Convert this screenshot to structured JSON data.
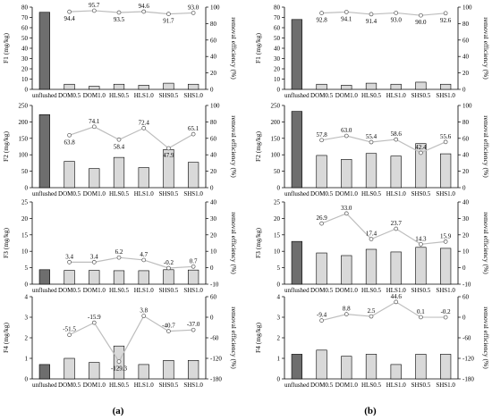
{
  "figure": {
    "panel_labels": [
      "(a)",
      "(b)"
    ]
  },
  "colors": {
    "unflushed_bar": "#6e6e6e",
    "treatment_bar": "#d9d9d9",
    "bar_outline": "#000000",
    "efficiency_line": "#bdbdbd",
    "efficiency_marker_fill": "#ffffff"
  },
  "chart_data": [
    {
      "type": "bar",
      "panel": "(a)",
      "categories": [
        "unflushed",
        "DOM0.5",
        "DOM1.0",
        "HLS0.5",
        "HLS1.0",
        "SHS0.5",
        "SHS1.0"
      ],
      "series": [
        {
          "name": "",
          "values": [
            75,
            5,
            3,
            5,
            4,
            6,
            5
          ]
        }
      ],
      "ylabel": "F1 (mg/kg)",
      "ylim": [
        0,
        80
      ],
      "yticks": [
        0,
        10,
        20,
        30,
        40,
        50,
        60,
        70,
        80
      ],
      "y2label": "removal efficiency (%)",
      "y2lim": [
        0,
        100
      ],
      "y2ticks": [
        0,
        20,
        40,
        60,
        80,
        100
      ],
      "efficiency": [
        94.4,
        95.7,
        93.5,
        94.6,
        91.7,
        93.0
      ],
      "efficiency_labels": [
        "94.4",
        "95.7",
        "93.5",
        "94.6",
        "91.7",
        "93.0"
      ],
      "label_pos": [
        "below",
        "above",
        "below",
        "above",
        "below",
        "above"
      ]
    },
    {
      "type": "bar",
      "panel": "(a)",
      "categories": [
        "unflushed",
        "DOM0.5",
        "DOM1.0",
        "HLS0.5",
        "HLS1.0",
        "SHS0.5",
        "SHS1.0"
      ],
      "series": [
        {
          "name": "",
          "values": [
            222,
            80,
            58,
            92,
            61,
            116,
            77
          ]
        }
      ],
      "ylabel": "F2 (mg/kg)",
      "ylim": [
        0,
        250
      ],
      "yticks": [
        0,
        50,
        100,
        150,
        200,
        250
      ],
      "y2label": "removal efficiency (%)",
      "y2lim": [
        0,
        100
      ],
      "y2ticks": [
        0,
        20,
        40,
        60,
        80,
        100
      ],
      "efficiency": [
        63.8,
        74.1,
        58.4,
        72.4,
        47.9,
        65.1
      ],
      "efficiency_labels": [
        "63.8",
        "74.1",
        "58.4",
        "72.4",
        "47.9",
        "65.1"
      ],
      "label_pos": [
        "below",
        "above",
        "below",
        "above",
        "below",
        "above"
      ]
    },
    {
      "type": "bar",
      "panel": "(a)",
      "categories": [
        "unflushed",
        "DOM0.5",
        "DOM1.0",
        "HLS0.5",
        "HLS1.0",
        "SHS0.5",
        "SHS1.0"
      ],
      "series": [
        {
          "name": "",
          "values": [
            4.4,
            4.2,
            4.2,
            4.1,
            4.1,
            4.4,
            4.3
          ]
        }
      ],
      "ylabel": "F3 (mg/kg)",
      "ylim": [
        0,
        25
      ],
      "yticks": [
        0,
        5,
        10,
        15,
        20,
        25
      ],
      "y2label": "removal efficiency (%)",
      "y2lim": [
        -10,
        40
      ],
      "y2ticks": [
        -10,
        0,
        10,
        20,
        30,
        40
      ],
      "efficiency": [
        3.4,
        3.4,
        6.2,
        4.7,
        -0.2,
        0.7
      ],
      "efficiency_labels": [
        "3.4",
        "3.4",
        "6.2",
        "4.7",
        "-0.2",
        "0.7"
      ],
      "label_pos": [
        "above",
        "above",
        "above",
        "above",
        "above",
        "above"
      ]
    },
    {
      "type": "bar",
      "panel": "(a)",
      "categories": [
        "unflushed",
        "DOM0.5",
        "DOM1.0",
        "HLS0.5",
        "HLS1.0",
        "SHS0.5",
        "SHS1.0"
      ],
      "series": [
        {
          "name": "",
          "values": [
            0.7,
            1.0,
            0.8,
            1.6,
            0.7,
            0.9,
            0.9
          ]
        }
      ],
      "ylabel": "F4 (mg/kg)",
      "ylim": [
        0,
        4
      ],
      "yticks": [
        0,
        1,
        2,
        3,
        4
      ],
      "y2label": "removal efficiency (%)",
      "y2lim": [
        -180,
        60
      ],
      "y2ticks": [
        -180,
        -120,
        -60,
        0,
        60
      ],
      "efficiency": [
        -51.5,
        -15.9,
        -129.3,
        3.8,
        -40.7,
        -37.0
      ],
      "efficiency_labels": [
        "-51.5",
        "-15.9",
        "-129.3",
        "3.8",
        "-40.7",
        "-37.0"
      ],
      "label_pos": [
        "above",
        "above",
        "below",
        "above",
        "above",
        "above"
      ]
    },
    {
      "type": "bar",
      "panel": "(b)",
      "categories": [
        "unflushed",
        "DOM0.5",
        "DOM1.0",
        "HLS0.5",
        "HLS1.0",
        "SHS0.5",
        "SHS1.0"
      ],
      "series": [
        {
          "name": "",
          "values": [
            68,
            5,
            4,
            6,
            5,
            7,
            5
          ]
        }
      ],
      "ylabel": "F1 (mg/kg)",
      "ylim": [
        0,
        80
      ],
      "yticks": [
        0,
        10,
        20,
        30,
        40,
        50,
        60,
        70,
        80
      ],
      "y2label": "removal efficiency (%)",
      "y2lim": [
        0,
        100
      ],
      "y2ticks": [
        0,
        20,
        40,
        60,
        80,
        100
      ],
      "efficiency": [
        92.8,
        94.1,
        91.4,
        93.0,
        90.0,
        92.6
      ],
      "efficiency_labels": [
        "92.8",
        "94.1",
        "91.4",
        "93.0",
        "90.0",
        "92.6"
      ],
      "label_pos": [
        "below",
        "below",
        "below",
        "below",
        "below",
        "below"
      ]
    },
    {
      "type": "bar",
      "panel": "(b)",
      "categories": [
        "unflushed",
        "DOM0.5",
        "DOM1.0",
        "HLS0.5",
        "HLS1.0",
        "SHS0.5",
        "SHS1.0"
      ],
      "series": [
        {
          "name": "",
          "values": [
            232,
            98,
            86,
            104,
            96,
            134,
            103
          ]
        }
      ],
      "ylabel": "F2 (mg/kg)",
      "ylim": [
        0,
        250
      ],
      "yticks": [
        0,
        50,
        100,
        150,
        200,
        250
      ],
      "y2label": "removal efficiency (%)",
      "y2lim": [
        0,
        100
      ],
      "y2ticks": [
        0,
        20,
        40,
        60,
        80,
        100
      ],
      "efficiency": [
        57.8,
        63.0,
        55.4,
        58.6,
        42.4,
        55.6
      ],
      "efficiency_labels": [
        "57.8",
        "63.0",
        "55.4",
        "58.6",
        "42.4",
        "55.6"
      ],
      "label_pos": [
        "above",
        "above",
        "above",
        "above",
        "above",
        "above"
      ]
    },
    {
      "type": "bar",
      "panel": "(b)",
      "categories": [
        "unflushed",
        "DOM0.5",
        "DOM1.0",
        "HLS0.5",
        "HLS1.0",
        "SHS0.5",
        "SHS1.0"
      ],
      "series": [
        {
          "name": "",
          "values": [
            13,
            9.5,
            8.7,
            10.6,
            9.8,
            11.2,
            10.9
          ]
        }
      ],
      "ylabel": "F3 (mg/kg)",
      "ylim": [
        0,
        25
      ],
      "yticks": [
        0,
        5,
        10,
        15,
        20,
        25
      ],
      "y2label": "removal efficiency (%)",
      "y2lim": [
        -10,
        40
      ],
      "y2ticks": [
        -10,
        0,
        10,
        20,
        30,
        40
      ],
      "efficiency": [
        26.9,
        33.0,
        17.4,
        23.7,
        14.3,
        15.9
      ],
      "efficiency_labels": [
        "26.9",
        "33.0",
        "17.4",
        "23.7",
        "14.3",
        "15.9"
      ],
      "label_pos": [
        "above",
        "above",
        "above",
        "above",
        "above",
        "above"
      ]
    },
    {
      "type": "bar",
      "panel": "(b)",
      "categories": [
        "unflushed",
        "DOM0.5",
        "DOM1.0",
        "HLS0.5",
        "HLS1.0",
        "SHS0.5",
        "SHS1.0"
      ],
      "series": [
        {
          "name": "",
          "values": [
            1.2,
            1.4,
            1.1,
            1.2,
            0.7,
            1.2,
            1.2
          ]
        }
      ],
      "ylabel": "F4 (mg/kg)",
      "ylim": [
        0,
        4
      ],
      "yticks": [
        0,
        1,
        2,
        3,
        4
      ],
      "y2label": "removal efficiency (%)",
      "y2lim": [
        -180,
        60
      ],
      "y2ticks": [
        -180,
        -120,
        -60,
        0,
        60
      ],
      "efficiency": [
        -9.4,
        8.8,
        2.5,
        44.6,
        0.1,
        -0.2
      ],
      "efficiency_labels": [
        "-9.4",
        "8.8",
        "2.5",
        "44.6",
        "0.1",
        "-0.2"
      ],
      "label_pos": [
        "above",
        "above",
        "above",
        "above",
        "above",
        "above"
      ]
    }
  ]
}
